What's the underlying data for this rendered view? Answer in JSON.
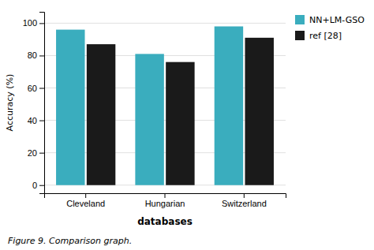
{
  "chart_data": {
    "type": "bar",
    "categories": [
      "Cleveland",
      "Hungarian",
      "Switzerland"
    ],
    "series": [
      {
        "name": "NN+LM-GSO",
        "color": "#3aadbe",
        "values": [
          96,
          81,
          98
        ]
      },
      {
        "name": "ref [28]",
        "color": "#1a1a1a",
        "values": [
          87,
          76,
          91
        ]
      }
    ],
    "xlabel": "databases",
    "ylabel": "Accuracy (%)",
    "caption": "Figure 9. Comparison graph.",
    "ylim": [
      -5,
      107
    ],
    "yticks": [
      0,
      20,
      40,
      60,
      80,
      100
    ],
    "grid": true,
    "legend": "right"
  }
}
